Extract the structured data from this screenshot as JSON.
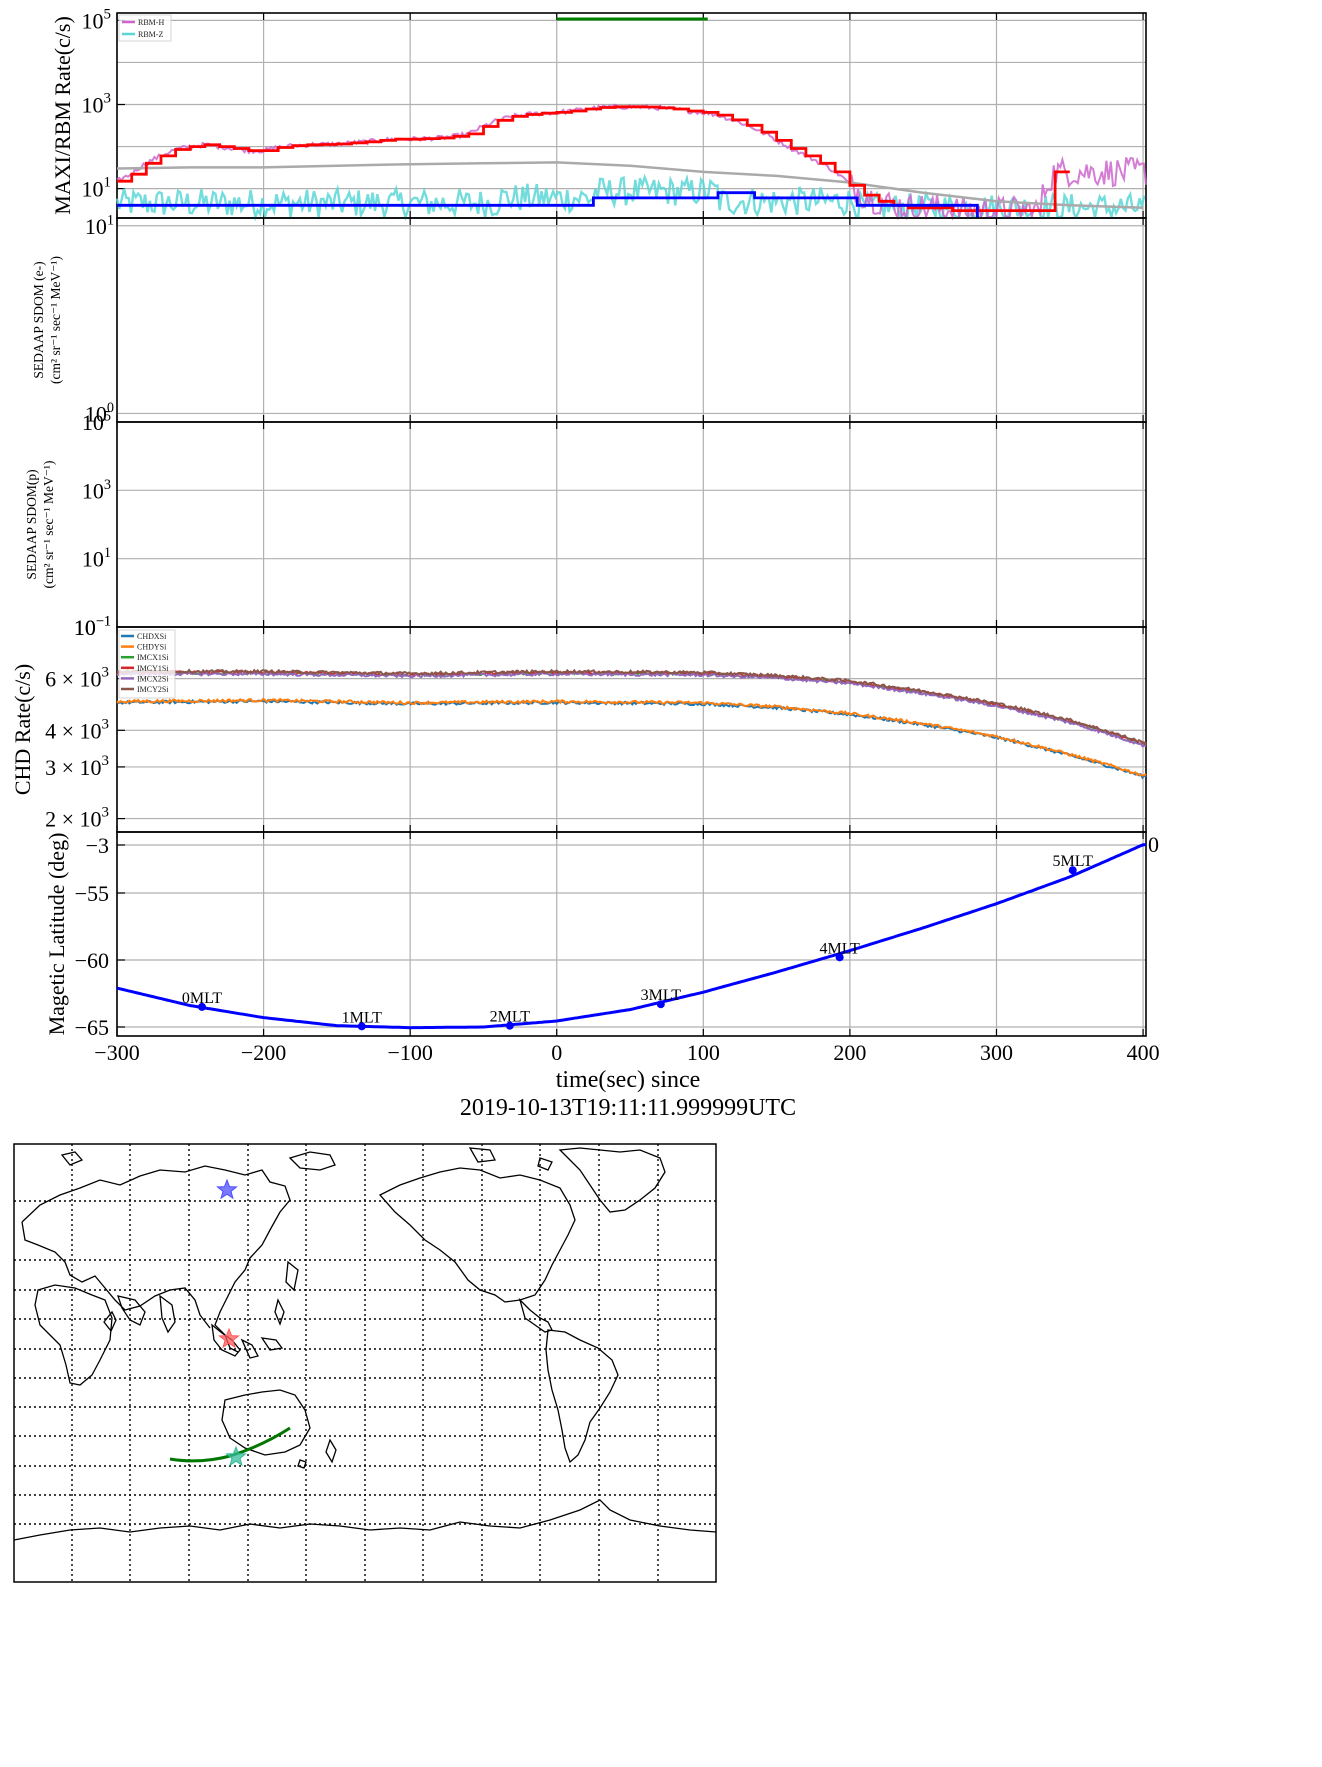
{
  "chart_data": [
    {
      "panel": "maxi-rbm",
      "type": "line",
      "ylabel": "MAXI/RBM Rate(c/s)",
      "yscale": "log",
      "ylim": [
        2,
        150000
      ],
      "ytick_labels": [
        {
          "base": "10",
          "exp": "5",
          "value": 100000
        },
        {
          "base": "10",
          "exp": "3",
          "value": 1000
        },
        {
          "base": "10",
          "exp": "1",
          "value": 10
        }
      ],
      "legend": {
        "position": "top-left",
        "entries": [
          {
            "name": "RBM-H",
            "color": "#cc66cc"
          },
          {
            "name": "RBM-Z",
            "color": "#5ad6d6"
          }
        ]
      },
      "colors": {
        "rbm_h": "#cc66cc",
        "rbm_z": "#5ad6d6",
        "red_step": "#ff0000",
        "blue_step": "#0000ff",
        "background": "#aaaaaa",
        "green_bar": "#008000"
      },
      "green_bar": {
        "x": [
          0,
          103
        ],
        "y": 100000
      },
      "red_step_approx": {
        "x": [
          -300,
          -290,
          -280,
          -270,
          -260,
          -250,
          -240,
          -230,
          -220,
          -210,
          -200,
          -190,
          -180,
          -170,
          -160,
          -150,
          -140,
          -130,
          -120,
          -110,
          -100,
          -90,
          -80,
          -70,
          -60,
          -50,
          -40,
          -30,
          -20,
          -10,
          0,
          10,
          20,
          30,
          40,
          50,
          60,
          70,
          80,
          90,
          100,
          110,
          120,
          130,
          140,
          150,
          160,
          170,
          180,
          190,
          200,
          210,
          220,
          230,
          240,
          250,
          260,
          270,
          280,
          290,
          300,
          310,
          320,
          330,
          340
        ],
        "y": [
          15,
          22,
          40,
          60,
          85,
          100,
          110,
          100,
          90,
          80,
          80,
          95,
          105,
          110,
          112,
          115,
          122,
          130,
          140,
          150,
          150,
          155,
          160,
          175,
          200,
          300,
          420,
          520,
          580,
          620,
          650,
          700,
          780,
          850,
          880,
          880,
          870,
          830,
          780,
          700,
          650,
          560,
          430,
          320,
          220,
          140,
          90,
          60,
          40,
          25,
          12,
          7,
          5,
          4,
          3.5,
          3.5,
          3.5,
          3,
          3,
          3,
          3,
          3,
          3,
          3,
          25
        ]
      },
      "blue_step_approx": {
        "x": [
          -300,
          -40,
          25,
          110,
          135,
          205,
          287,
          400
        ],
        "y": [
          4,
          4,
          6,
          8,
          6,
          4,
          4,
          2.2
        ]
      },
      "background_approx": {
        "x": [
          -300,
          -250,
          -200,
          -150,
          -100,
          -50,
          0,
          50,
          100,
          150,
          200,
          250,
          300,
          350,
          400
        ],
        "y": [
          30,
          32,
          32,
          35,
          38,
          40,
          42,
          35,
          25,
          20,
          14,
          8,
          5,
          4,
          3.5
        ]
      }
    },
    {
      "panel": "sedaap-electron",
      "type": "line",
      "ylabel": [
        "SEDAAP SDOM (e-)",
        "(cm² sr⁻¹ sec⁻¹ MeV⁻¹)"
      ],
      "yscale": "log",
      "ytick_labels": [
        {
          "base": "10",
          "exp": "1",
          "value": 10
        },
        {
          "base": "10",
          "exp": "0",
          "value": 1
        }
      ],
      "series": []
    },
    {
      "panel": "sedaap-proton",
      "type": "line",
      "ylabel": [
        "SEDAAP SDOM(p)",
        "(cm² sr⁻¹ sec⁻¹ MeV⁻¹)"
      ],
      "yscale": "log",
      "ytick_labels": [
        {
          "base": "10",
          "exp": "5",
          "value": 100000
        },
        {
          "base": "10",
          "exp": "3",
          "value": 1000
        },
        {
          "base": "10",
          "exp": "1",
          "value": 10
        },
        {
          "base": "10",
          "exp": "−1",
          "value": 0.1
        }
      ],
      "series": []
    },
    {
      "panel": "chd",
      "type": "line",
      "ylabel": "CHD Rate(c/s)",
      "yscale": "log",
      "ylim": [
        1800,
        9000
      ],
      "ytick_labels": [
        {
          "base": "6 × 10",
          "exp": "3",
          "value": 6000
        },
        {
          "base": "4 × 10",
          "exp": "3",
          "value": 4000
        },
        {
          "base": "3 × 10",
          "exp": "3",
          "value": 3000
        },
        {
          "base": "2 × 10",
          "exp": "3",
          "value": 2000
        }
      ],
      "legend": {
        "position": "top-left",
        "entries": [
          {
            "name": "CHDXSi",
            "color": "#1f77b4"
          },
          {
            "name": "CHDYSi",
            "color": "#ff7f0e"
          },
          {
            "name": "IMCX1Si",
            "color": "#2ca02c"
          },
          {
            "name": "IMCY1Si",
            "color": "#d62728"
          },
          {
            "name": "IMCX2Si",
            "color": "#9467bd"
          },
          {
            "name": "IMCY2Si",
            "color": "#8c564b"
          }
        ]
      },
      "lower_group_approx": {
        "x": [
          -300,
          -200,
          -100,
          0,
          100,
          150,
          200,
          250,
          300,
          350,
          400
        ],
        "y": [
          5000,
          5050,
          4950,
          5000,
          4950,
          4800,
          4550,
          4200,
          3800,
          3300,
          2800
        ]
      },
      "upper_group_approx": {
        "x": [
          -300,
          -200,
          -100,
          0,
          100,
          150,
          200,
          250,
          300,
          350,
          400
        ],
        "y": [
          6300,
          6300,
          6200,
          6300,
          6250,
          6100,
          5850,
          5400,
          4900,
          4300,
          3600
        ]
      }
    },
    {
      "panel": "magnetic-latitude",
      "type": "line",
      "ylabel": "Magetic Latitude  (deg)",
      "xlabel": [
        "time(sec) since",
        "2019-10-13T19:11:11.999999UTC"
      ],
      "xlim": [
        -300,
        402
      ],
      "xticks": [
        -300,
        -200,
        -100,
        0,
        100,
        200,
        300,
        400
      ],
      "xtick_labels": [
        "−300",
        "−200",
        "−100",
        "0",
        "100",
        "200",
        "300",
        "400"
      ],
      "ytick_labels": [
        "−3",
        "−55",
        "−60",
        "−65"
      ],
      "line_color": "#0000ff",
      "curve": {
        "x": [
          -300,
          -250,
          -200,
          -150,
          -100,
          -50,
          0,
          50,
          100,
          150,
          200,
          250,
          300,
          350,
          400
        ],
        "y": [
          -62.1,
          -63.4,
          -64.3,
          -64.9,
          -65.05,
          -65.0,
          -64.55,
          -63.7,
          -62.4,
          -60.9,
          -59.3,
          -57.6,
          -55.8,
          -53.8,
          -51.4
        ]
      },
      "mlt_points": [
        {
          "label": "0MLT",
          "x": -242,
          "y": -63.5
        },
        {
          "label": "1MLT",
          "x": -133,
          "y": -64.95
        },
        {
          "label": "2MLT",
          "x": -32,
          "y": -64.9
        },
        {
          "label": "3MLT",
          "x": 71,
          "y": -63.3
        },
        {
          "label": "4MLT",
          "x": 193,
          "y": -59.8
        },
        {
          "label": "5MLT",
          "x": 352,
          "y": -53.3
        }
      ],
      "edge_label": "0"
    }
  ],
  "map": {
    "type": "map",
    "colors": {
      "track": "#007700",
      "star_blue": "#4d4dff",
      "star_red": "#ff5a5a",
      "star_teal": "#33bb99"
    },
    "markers": [
      {
        "name": "blue-star"
      },
      {
        "name": "red-star"
      },
      {
        "name": "teal-star"
      }
    ]
  }
}
